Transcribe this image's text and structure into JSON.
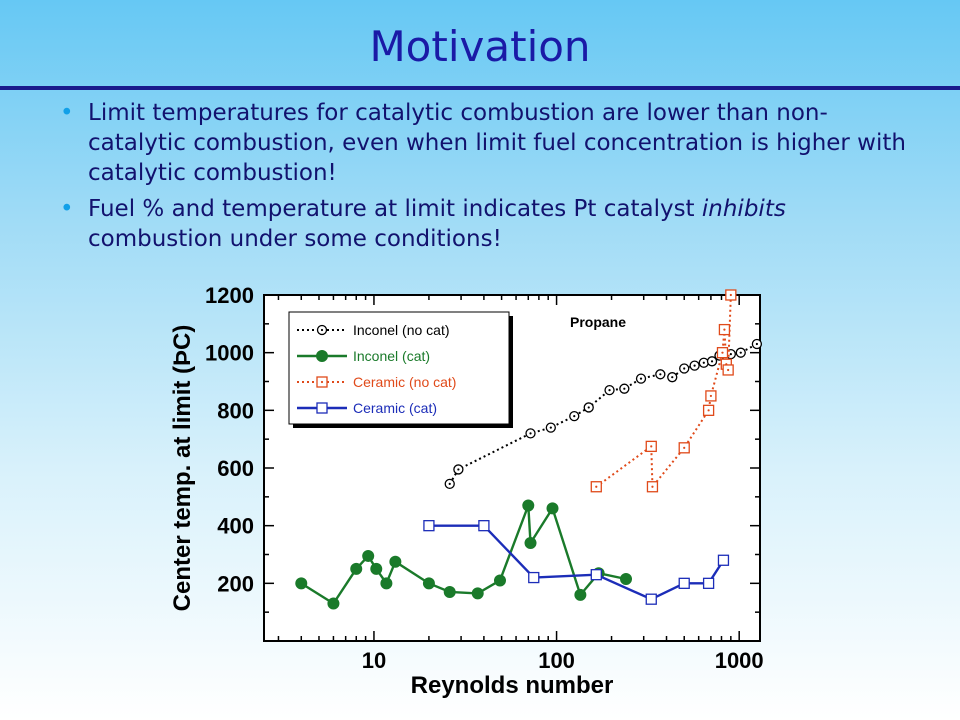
{
  "slide": {
    "title": "Motivation",
    "bullets": [
      {
        "text_before": "Limit temperatures for catalytic combustion are lower than non-catalytic combustion, even when limit fuel concentration is higher with catalytic combustion!",
        "emph": "",
        "text_after": ""
      },
      {
        "text_before": "Fuel % and temperature at limit indicates Pt catalyst ",
        "emph": "inhibits",
        "text_after": " combustion under some conditions!"
      }
    ],
    "bullet_glyph": "•"
  },
  "chart_data": {
    "type": "line",
    "xlabel": "Reynolds number",
    "ylabel": "Center temp. at limit (ÞC)",
    "xscale": "log",
    "xlim": [
      2.5,
      1300
    ],
    "ylim": [
      0,
      1200
    ],
    "xticks": [
      {
        "value": 10,
        "label": "10"
      },
      {
        "value": 100,
        "label": "100"
      },
      {
        "value": 1000,
        "label": "1000"
      }
    ],
    "yticks": [
      {
        "value": 200,
        "label": "200"
      },
      {
        "value": 400,
        "label": "400"
      },
      {
        "value": 600,
        "label": "600"
      },
      {
        "value": 800,
        "label": "800"
      },
      {
        "value": 1000,
        "label": "1000"
      },
      {
        "value": 1200,
        "label": "1200"
      }
    ],
    "annotation": "Propane",
    "legend_position": "top-left",
    "series": [
      {
        "name": "Inconel (no cat)",
        "color": "#000000",
        "dash": "dot",
        "marker": "circle-dot",
        "x": [
          26,
          29,
          72,
          93,
          125,
          150,
          195,
          235,
          290,
          370,
          430,
          500,
          570,
          640,
          710,
          780,
          900,
          1020,
          1250
        ],
        "y": [
          545,
          595,
          720,
          740,
          780,
          810,
          870,
          875,
          910,
          925,
          915,
          945,
          955,
          965,
          970,
          990,
          995,
          1000,
          1030
        ]
      },
      {
        "name": "Inconel (cat)",
        "color": "#1a7a2a",
        "dash": "solid",
        "marker": "filled-circle",
        "x": [
          4,
          6,
          8,
          9.3,
          10.3,
          11.7,
          13.1,
          20,
          26,
          37,
          49,
          70,
          72,
          95,
          135,
          170,
          240
        ],
        "y": [
          200,
          130,
          250,
          295,
          250,
          200,
          275,
          200,
          170,
          165,
          210,
          470,
          340,
          460,
          160,
          235,
          215
        ]
      },
      {
        "name": "Ceramic (no cat)",
        "color": "#e04a1a",
        "dash": "dot",
        "marker": "square-dot",
        "x": [
          165,
          330,
          335,
          500,
          680,
          700,
          810,
          830,
          850,
          870,
          900
        ],
        "y": [
          535,
          675,
          535,
          670,
          800,
          850,
          1000,
          1080,
          960,
          940,
          1200
        ]
      },
      {
        "name": "Ceramic (cat)",
        "color": "#1c2db8",
        "dash": "solid",
        "marker": "open-square",
        "x": [
          20,
          40,
          75,
          165,
          330,
          500,
          680,
          820
        ],
        "y": [
          400,
          400,
          220,
          230,
          145,
          200,
          200,
          280
        ]
      }
    ]
  }
}
